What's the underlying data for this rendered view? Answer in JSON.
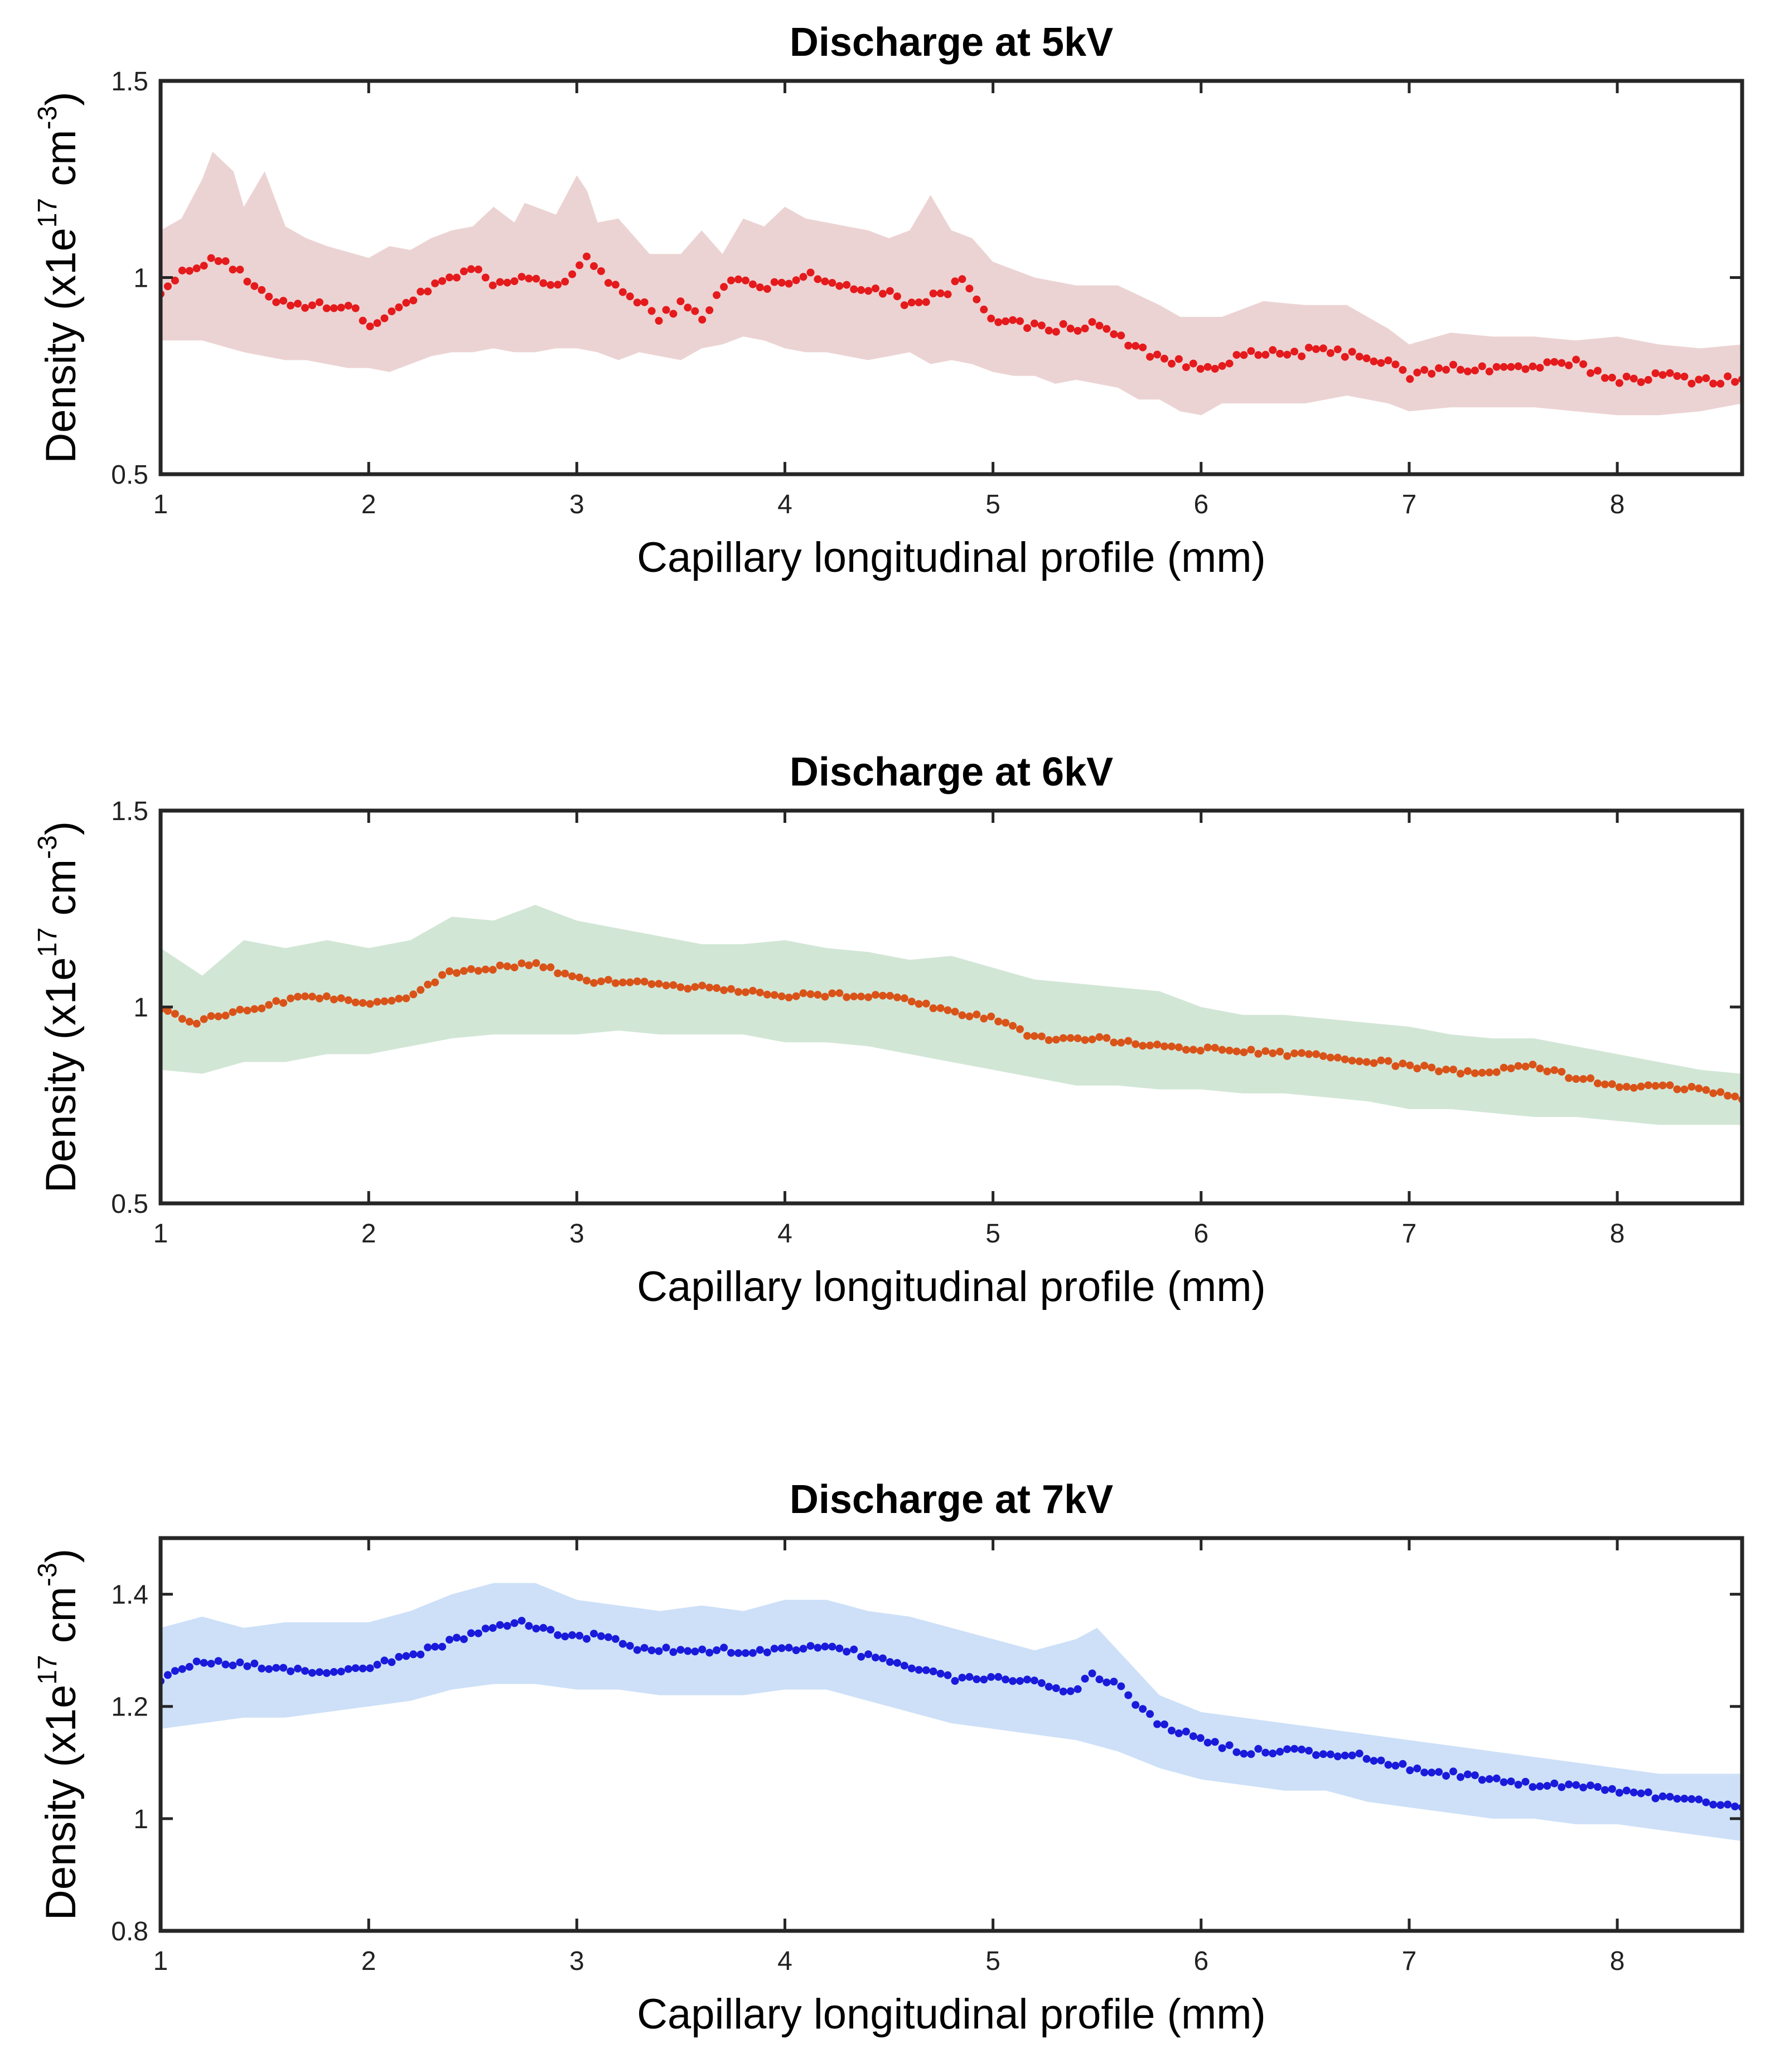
{
  "chart_data": [
    {
      "type": "scatter",
      "title": "Discharge at 5kV",
      "xlabel": "Capillary longitudinal profile (mm)",
      "ylabel": {
        "prefix": "Density (x1e",
        "exp": "17",
        "mid": " cm",
        "exp2": "-3",
        "suffix": ")"
      },
      "xlim": [
        1,
        8.6
      ],
      "ylim": [
        0.5,
        1.5
      ],
      "xticks": [
        1,
        2,
        3,
        4,
        5,
        6,
        7,
        8
      ],
      "yticks": [
        0.5,
        1,
        1.5
      ],
      "ytick_labels": [
        "0.5",
        "1",
        "1.5"
      ],
      "marker_color": "#e41a1c",
      "band_color": "#ecd3d3",
      "series_profile": {
        "x": [
          1.0,
          1.2,
          1.3,
          1.4,
          1.5,
          1.7,
          1.9,
          2.0,
          2.1,
          2.2,
          2.3,
          2.5,
          2.6,
          2.8,
          2.9,
          3.0,
          3.05,
          3.2,
          3.4,
          3.5,
          3.6,
          3.75,
          3.9,
          4.0,
          4.15,
          4.3,
          4.5,
          4.6,
          4.7,
          4.8,
          4.85,
          5.0,
          5.1,
          5.3,
          5.5,
          5.6,
          5.75,
          5.9,
          6.0,
          6.2,
          6.5,
          6.7,
          6.8,
          6.9,
          7.0,
          7.2,
          7.5,
          7.8,
          8.0,
          8.2,
          8.4,
          8.6
        ],
        "y": [
          0.97,
          1.04,
          1.05,
          1.0,
          0.95,
          0.93,
          0.93,
          0.88,
          0.9,
          0.95,
          0.97,
          1.02,
          0.98,
          1.0,
          0.98,
          1.01,
          1.05,
          0.97,
          0.9,
          0.93,
          0.9,
          1.0,
          0.97,
          0.99,
          1.01,
          0.97,
          0.97,
          0.93,
          0.95,
          0.97,
          1.0,
          0.9,
          0.88,
          0.87,
          0.88,
          0.85,
          0.81,
          0.78,
          0.77,
          0.8,
          0.81,
          0.81,
          0.8,
          0.78,
          0.75,
          0.77,
          0.77,
          0.78,
          0.74,
          0.75,
          0.74,
          0.74
        ]
      },
      "band_upper": {
        "x": [
          1.0,
          1.1,
          1.2,
          1.25,
          1.35,
          1.4,
          1.5,
          1.6,
          1.7,
          1.8,
          2.0,
          2.1,
          2.2,
          2.3,
          2.4,
          2.5,
          2.6,
          2.7,
          2.75,
          2.9,
          3.0,
          3.05,
          3.1,
          3.2,
          3.35,
          3.5,
          3.6,
          3.7,
          3.8,
          3.9,
          4.0,
          4.1,
          4.2,
          4.3,
          4.4,
          4.5,
          4.6,
          4.7,
          4.8,
          4.9,
          5.0,
          5.2,
          5.4,
          5.6,
          5.8,
          5.9,
          6.1,
          6.3,
          6.5,
          6.7,
          6.9,
          7.0,
          7.2,
          7.4,
          7.6,
          7.8,
          8.0,
          8.2,
          8.4,
          8.6
        ],
        "y": [
          1.12,
          1.15,
          1.25,
          1.32,
          1.27,
          1.18,
          1.27,
          1.13,
          1.1,
          1.08,
          1.05,
          1.08,
          1.07,
          1.1,
          1.12,
          1.13,
          1.18,
          1.14,
          1.19,
          1.16,
          1.26,
          1.22,
          1.14,
          1.15,
          1.06,
          1.06,
          1.12,
          1.06,
          1.15,
          1.13,
          1.18,
          1.15,
          1.14,
          1.13,
          1.12,
          1.1,
          1.12,
          1.21,
          1.12,
          1.1,
          1.04,
          1.0,
          0.98,
          0.98,
          0.93,
          0.9,
          0.9,
          0.94,
          0.93,
          0.93,
          0.87,
          0.83,
          0.86,
          0.85,
          0.85,
          0.84,
          0.85,
          0.83,
          0.82,
          0.83
        ]
      },
      "band_lower": {
        "x": [
          1.0,
          1.2,
          1.4,
          1.5,
          1.6,
          1.7,
          1.8,
          1.9,
          2.0,
          2.1,
          2.2,
          2.3,
          2.4,
          2.5,
          2.6,
          2.7,
          2.8,
          2.9,
          3.0,
          3.1,
          3.2,
          3.3,
          3.4,
          3.5,
          3.6,
          3.7,
          3.8,
          3.9,
          4.0,
          4.1,
          4.2,
          4.3,
          4.4,
          4.5,
          4.6,
          4.7,
          4.8,
          4.9,
          5.0,
          5.1,
          5.2,
          5.3,
          5.4,
          5.5,
          5.6,
          5.7,
          5.8,
          5.9,
          6.0,
          6.1,
          6.3,
          6.5,
          6.7,
          6.9,
          7.0,
          7.2,
          7.4,
          7.6,
          7.8,
          8.0,
          8.2,
          8.4,
          8.6
        ],
        "y": [
          0.84,
          0.84,
          0.81,
          0.8,
          0.79,
          0.79,
          0.78,
          0.77,
          0.77,
          0.76,
          0.78,
          0.8,
          0.81,
          0.81,
          0.82,
          0.81,
          0.81,
          0.82,
          0.82,
          0.81,
          0.79,
          0.81,
          0.8,
          0.79,
          0.82,
          0.83,
          0.85,
          0.84,
          0.82,
          0.81,
          0.81,
          0.8,
          0.79,
          0.8,
          0.81,
          0.78,
          0.79,
          0.78,
          0.76,
          0.75,
          0.75,
          0.73,
          0.74,
          0.73,
          0.72,
          0.69,
          0.69,
          0.66,
          0.65,
          0.68,
          0.68,
          0.68,
          0.7,
          0.68,
          0.66,
          0.67,
          0.67,
          0.67,
          0.66,
          0.65,
          0.65,
          0.66,
          0.68
        ]
      },
      "points_count": 220,
      "noise_amplitude": 0.012
    },
    {
      "type": "scatter",
      "title": "Discharge at 6kV",
      "xlabel": "Capillary longitudinal profile (mm)",
      "ylabel": {
        "prefix": "Density (x1e",
        "exp": "17",
        "mid": " cm",
        "exp2": "-3",
        "suffix": ")"
      },
      "xlim": [
        1,
        8.6
      ],
      "ylim": [
        0.5,
        1.5
      ],
      "xticks": [
        1,
        2,
        3,
        4,
        5,
        6,
        7,
        8
      ],
      "yticks": [
        0.5,
        1,
        1.5
      ],
      "ytick_labels": [
        "0.5",
        "1",
        "1.5"
      ],
      "marker_color": "#d95319",
      "band_color": "#d2e6d6",
      "series_profile": {
        "x": [
          1.0,
          1.15,
          1.4,
          1.7,
          2.0,
          2.2,
          2.4,
          2.6,
          2.8,
          3.0,
          3.3,
          3.6,
          4.0,
          4.3,
          4.5,
          4.7,
          5.0,
          5.2,
          5.5,
          5.8,
          6.1,
          6.4,
          6.7,
          7.0,
          7.3,
          7.6,
          7.8,
          8.0,
          8.2,
          8.4,
          8.6
        ],
        "y": [
          1.0,
          0.96,
          0.99,
          1.03,
          1.01,
          1.03,
          1.09,
          1.1,
          1.11,
          1.07,
          1.06,
          1.05,
          1.03,
          1.03,
          1.03,
          1.0,
          0.97,
          0.92,
          0.92,
          0.9,
          0.89,
          0.88,
          0.87,
          0.85,
          0.83,
          0.85,
          0.82,
          0.8,
          0.8,
          0.79,
          0.77
        ]
      },
      "band_upper": {
        "x": [
          1.0,
          1.2,
          1.4,
          1.6,
          1.8,
          2.0,
          2.2,
          2.4,
          2.6,
          2.8,
          3.0,
          3.2,
          3.4,
          3.6,
          3.8,
          4.0,
          4.2,
          4.4,
          4.6,
          4.8,
          5.0,
          5.2,
          5.4,
          5.6,
          5.8,
          6.0,
          6.2,
          6.4,
          6.6,
          6.8,
          7.0,
          7.2,
          7.4,
          7.6,
          7.8,
          8.0,
          8.2,
          8.4,
          8.6
        ],
        "y": [
          1.15,
          1.08,
          1.17,
          1.15,
          1.17,
          1.15,
          1.17,
          1.23,
          1.22,
          1.26,
          1.22,
          1.2,
          1.18,
          1.16,
          1.16,
          1.17,
          1.15,
          1.14,
          1.12,
          1.13,
          1.1,
          1.07,
          1.06,
          1.05,
          1.04,
          1.0,
          0.98,
          0.98,
          0.97,
          0.96,
          0.95,
          0.93,
          0.92,
          0.92,
          0.9,
          0.88,
          0.86,
          0.84,
          0.83
        ]
      },
      "band_lower": {
        "x": [
          1.0,
          1.2,
          1.4,
          1.6,
          1.8,
          2.0,
          2.2,
          2.4,
          2.6,
          2.8,
          3.0,
          3.2,
          3.4,
          3.6,
          3.8,
          4.0,
          4.2,
          4.4,
          4.6,
          4.8,
          5.0,
          5.2,
          5.4,
          5.6,
          5.8,
          6.0,
          6.2,
          6.4,
          6.6,
          6.8,
          7.0,
          7.2,
          7.4,
          7.6,
          7.8,
          8.0,
          8.2,
          8.4,
          8.6
        ],
        "y": [
          0.84,
          0.83,
          0.86,
          0.86,
          0.88,
          0.88,
          0.9,
          0.92,
          0.93,
          0.93,
          0.93,
          0.94,
          0.93,
          0.93,
          0.93,
          0.91,
          0.91,
          0.9,
          0.88,
          0.86,
          0.84,
          0.82,
          0.8,
          0.8,
          0.79,
          0.79,
          0.78,
          0.78,
          0.77,
          0.76,
          0.74,
          0.74,
          0.73,
          0.72,
          0.72,
          0.71,
          0.7,
          0.7,
          0.7
        ]
      },
      "points_count": 220,
      "noise_amplitude": 0.006
    },
    {
      "type": "scatter",
      "title": "Discharge at 7kV",
      "xlabel": "Capillary longitudinal profile (mm)",
      "ylabel": {
        "prefix": "Density (x1e",
        "exp": "17",
        "mid": " cm",
        "exp2": "-3",
        "suffix": ")"
      },
      "xlim": [
        1,
        8.6
      ],
      "ylim": [
        0.8,
        1.5
      ],
      "xticks": [
        1,
        2,
        3,
        4,
        5,
        6,
        7,
        8
      ],
      "yticks": [
        0.8,
        1,
        1.2,
        1.4
      ],
      "ytick_labels": [
        "0.8",
        "1",
        "1.2",
        "1.4"
      ],
      "marker_color": "#1a1adb",
      "band_color": "#cde0f8",
      "series_profile": {
        "x": [
          1.0,
          1.2,
          1.5,
          1.8,
          2.0,
          2.2,
          2.5,
          2.75,
          3.0,
          3.1,
          3.3,
          3.6,
          4.0,
          4.2,
          4.4,
          4.6,
          4.8,
          5.0,
          5.2,
          5.4,
          5.45,
          5.6,
          5.7,
          5.8,
          6.0,
          6.2,
          6.5,
          6.8,
          7.0,
          7.2,
          7.4,
          7.6,
          7.8,
          8.0,
          8.2,
          8.4,
          8.6
        ],
        "y": [
          1.25,
          1.28,
          1.27,
          1.26,
          1.27,
          1.29,
          1.33,
          1.35,
          1.32,
          1.33,
          1.3,
          1.3,
          1.3,
          1.31,
          1.29,
          1.27,
          1.25,
          1.25,
          1.25,
          1.22,
          1.26,
          1.24,
          1.2,
          1.17,
          1.14,
          1.12,
          1.12,
          1.11,
          1.09,
          1.08,
          1.07,
          1.06,
          1.06,
          1.05,
          1.04,
          1.03,
          1.02
        ]
      },
      "band_upper": {
        "x": [
          1.0,
          1.2,
          1.4,
          1.6,
          1.8,
          2.0,
          2.2,
          2.4,
          2.6,
          2.8,
          3.0,
          3.2,
          3.4,
          3.6,
          3.8,
          4.0,
          4.2,
          4.4,
          4.6,
          4.8,
          5.0,
          5.2,
          5.4,
          5.5,
          5.6,
          5.7,
          5.8,
          6.0,
          6.2,
          6.4,
          6.6,
          6.8,
          7.0,
          7.2,
          7.4,
          7.6,
          7.8,
          8.0,
          8.2,
          8.4,
          8.6
        ],
        "y": [
          1.34,
          1.36,
          1.34,
          1.35,
          1.35,
          1.35,
          1.37,
          1.4,
          1.42,
          1.42,
          1.39,
          1.38,
          1.37,
          1.38,
          1.37,
          1.39,
          1.39,
          1.37,
          1.36,
          1.34,
          1.32,
          1.3,
          1.32,
          1.34,
          1.3,
          1.26,
          1.22,
          1.19,
          1.18,
          1.17,
          1.16,
          1.15,
          1.14,
          1.13,
          1.12,
          1.11,
          1.1,
          1.09,
          1.08,
          1.08,
          1.08
        ]
      },
      "band_lower": {
        "x": [
          1.0,
          1.2,
          1.4,
          1.6,
          1.8,
          2.0,
          2.2,
          2.4,
          2.6,
          2.8,
          3.0,
          3.2,
          3.4,
          3.6,
          3.8,
          4.0,
          4.2,
          4.4,
          4.6,
          4.8,
          5.0,
          5.2,
          5.4,
          5.6,
          5.8,
          6.0,
          6.2,
          6.4,
          6.6,
          6.8,
          7.0,
          7.2,
          7.4,
          7.6,
          7.8,
          8.0,
          8.2,
          8.4,
          8.6
        ],
        "y": [
          1.16,
          1.17,
          1.18,
          1.18,
          1.19,
          1.2,
          1.21,
          1.23,
          1.24,
          1.24,
          1.23,
          1.23,
          1.22,
          1.22,
          1.22,
          1.23,
          1.23,
          1.21,
          1.19,
          1.17,
          1.16,
          1.15,
          1.14,
          1.12,
          1.09,
          1.07,
          1.06,
          1.05,
          1.05,
          1.03,
          1.02,
          1.01,
          1.0,
          1.0,
          0.99,
          0.99,
          0.98,
          0.97,
          0.96
        ]
      },
      "points_count": 220,
      "noise_amplitude": 0.005
    }
  ]
}
